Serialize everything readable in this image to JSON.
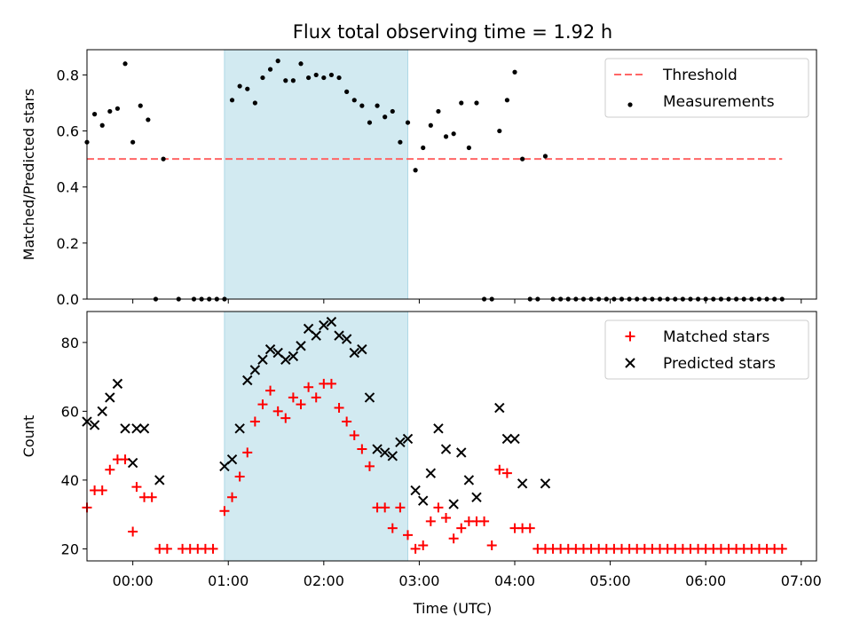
{
  "chart_data": {
    "title": "Flux total observing time = 1.92 h",
    "xlabel": "Time (UTC)",
    "xticks": [
      "00:00",
      "01:00",
      "02:00",
      "03:00",
      "04:00",
      "05:00",
      "06:00",
      "07:00"
    ],
    "xlim": [
      -0.48,
      7.16
    ],
    "shaded_interval": [
      0.96,
      2.88
    ],
    "shade_color": "#add8e6",
    "panels": [
      {
        "type": "scatter",
        "ylabel": "Matched/Predicted stars",
        "ylim": [
          0,
          0.89
        ],
        "yticks": [
          "0.0",
          "0.2",
          "0.4",
          "0.6",
          "0.8"
        ],
        "series": [
          {
            "name": "Threshold",
            "type": "line",
            "style": "dashed",
            "color": "#ff6666",
            "x": [
              -0.48,
              6.8
            ],
            "y": [
              0.5,
              0.5
            ]
          },
          {
            "name": "Measurements",
            "type": "scatter",
            "marker": "dot",
            "color": "#000000",
            "x": [
              -0.48,
              -0.4,
              -0.32,
              -0.24,
              -0.16,
              -0.08,
              0.0,
              0.08,
              0.16,
              0.24,
              0.32,
              0.48,
              0.64,
              0.72,
              0.8,
              0.88,
              0.96,
              1.04,
              1.12,
              1.2,
              1.28,
              1.36,
              1.44,
              1.52,
              1.6,
              1.68,
              1.76,
              1.84,
              1.92,
              2.0,
              2.08,
              2.16,
              2.24,
              2.32,
              2.4,
              2.48,
              2.56,
              2.64,
              2.72,
              2.8,
              2.88,
              2.96,
              3.04,
              3.12,
              3.2,
              3.28,
              3.36,
              3.44,
              3.52,
              3.6,
              3.68,
              3.76,
              3.84,
              3.92,
              4.0,
              4.08,
              4.16,
              4.24,
              4.32,
              4.4,
              4.48,
              4.56,
              4.64,
              4.72,
              4.8,
              4.88,
              4.96,
              5.04,
              5.12,
              5.2,
              5.28,
              5.36,
              5.44,
              5.52,
              5.6,
              5.68,
              5.76,
              5.84,
              5.92,
              6.0,
              6.08,
              6.16,
              6.24,
              6.32,
              6.4,
              6.48,
              6.56,
              6.64,
              6.72,
              6.8
            ],
            "y": [
              0.56,
              0.66,
              0.62,
              0.67,
              0.68,
              0.84,
              0.56,
              0.69,
              0.64,
              0.0,
              0.5,
              0.0,
              0.0,
              0.0,
              0.0,
              0.0,
              0.0,
              0.71,
              0.76,
              0.75,
              0.7,
              0.79,
              0.82,
              0.85,
              0.78,
              0.78,
              0.84,
              0.79,
              0.8,
              0.79,
              0.8,
              0.79,
              0.74,
              0.71,
              0.69,
              0.63,
              0.69,
              0.65,
              0.67,
              0.56,
              0.63,
              0.46,
              0.54,
              0.62,
              0.67,
              0.58,
              0.59,
              0.7,
              0.54,
              0.7,
              0.0,
              0.0,
              0.6,
              0.71,
              0.81,
              0.5,
              0.0,
              0.0,
              0.51,
              0.0,
              0.0,
              0.0,
              0.0,
              0.0,
              0.0,
              0.0,
              0.0,
              0.0,
              0.0,
              0.0,
              0.0,
              0.0,
              0.0,
              0.0,
              0.0,
              0.0,
              0.0,
              0.0,
              0.0,
              0.0,
              0.0,
              0.0,
              0.0,
              0.0,
              0.0,
              0.0,
              0.0,
              0.0,
              0.0,
              0.0
            ]
          }
        ],
        "legend": {
          "placement": "top-right",
          "entries": [
            "Threshold",
            "Measurements"
          ]
        }
      },
      {
        "type": "scatter",
        "ylabel": "Count",
        "ylim": [
          16.5,
          89
        ],
        "yticks": [
          "20",
          "40",
          "60",
          "80"
        ],
        "series": [
          {
            "name": "Matched stars",
            "marker": "plus",
            "color": "#ff0000",
            "x": [
              -0.48,
              -0.4,
              -0.32,
              -0.24,
              -0.16,
              -0.08,
              0.0,
              0.04,
              0.12,
              0.2,
              0.28,
              0.36,
              0.52,
              0.6,
              0.68,
              0.76,
              0.84,
              0.96,
              1.04,
              1.12,
              1.2,
              1.28,
              1.36,
              1.44,
              1.52,
              1.6,
              1.68,
              1.76,
              1.84,
              1.92,
              2.0,
              2.08,
              2.16,
              2.24,
              2.32,
              2.4,
              2.48,
              2.56,
              2.64,
              2.72,
              2.8,
              2.88,
              2.96,
              3.04,
              3.12,
              3.2,
              3.28,
              3.36,
              3.44,
              3.52,
              3.6,
              3.68,
              3.76,
              3.84,
              3.92,
              4.0,
              4.08,
              4.16,
              4.24,
              4.32,
              4.4,
              4.48,
              4.56,
              4.64,
              4.72,
              4.8,
              4.88,
              4.96,
              5.04,
              5.12,
              5.2,
              5.28,
              5.36,
              5.44,
              5.52,
              5.6,
              5.68,
              5.76,
              5.84,
              5.92,
              6.0,
              6.08,
              6.16,
              6.24,
              6.32,
              6.4,
              6.48,
              6.56,
              6.64,
              6.72,
              6.8
            ],
            "y": [
              32,
              37,
              37,
              43,
              46,
              46,
              25,
              38,
              35,
              35,
              20,
              20,
              20,
              20,
              20,
              20,
              20,
              31,
              35,
              41,
              48,
              57,
              62,
              66,
              60,
              58,
              64,
              62,
              67,
              64,
              68,
              68,
              61,
              57,
              53,
              49,
              44,
              32,
              32,
              26,
              32,
              24,
              20,
              21,
              28,
              32,
              29,
              23,
              26,
              28,
              28,
              28,
              21,
              43,
              42,
              26,
              26,
              26,
              20,
              20,
              20,
              20,
              20,
              20,
              20,
              20,
              20,
              20,
              20,
              20,
              20,
              20,
              20,
              20,
              20,
              20,
              20,
              20,
              20,
              20,
              20,
              20,
              20,
              20,
              20,
              20,
              20,
              20,
              20,
              20,
              20
            ]
          },
          {
            "name": "Predicted stars",
            "marker": "x",
            "color": "#000000",
            "x": [
              -0.48,
              -0.4,
              -0.32,
              -0.24,
              -0.16,
              -0.08,
              0.0,
              0.04,
              0.12,
              0.28,
              0.96,
              1.04,
              1.12,
              1.2,
              1.28,
              1.36,
              1.44,
              1.52,
              1.6,
              1.68,
              1.76,
              1.84,
              1.92,
              2.0,
              2.08,
              2.16,
              2.24,
              2.32,
              2.4,
              2.48,
              2.56,
              2.64,
              2.72,
              2.8,
              2.88,
              2.96,
              3.04,
              3.12,
              3.2,
              3.28,
              3.36,
              3.44,
              3.52,
              3.6,
              3.84,
              3.92,
              4.0,
              4.08,
              4.32
            ],
            "y": [
              57,
              56,
              60,
              64,
              68,
              55,
              45,
              55,
              55,
              40,
              44,
              46,
              55,
              69,
              72,
              75,
              78,
              77,
              75,
              76,
              79,
              84,
              82,
              85,
              86,
              82,
              81,
              77,
              78,
              64,
              49,
              48,
              47,
              51,
              52,
              37,
              34,
              42,
              55,
              49,
              33,
              48,
              40,
              35,
              61,
              52,
              52,
              39,
              39
            ]
          }
        ],
        "legend": {
          "placement": "top-right",
          "entries": [
            "Matched stars",
            "Predicted stars"
          ]
        }
      }
    ]
  }
}
